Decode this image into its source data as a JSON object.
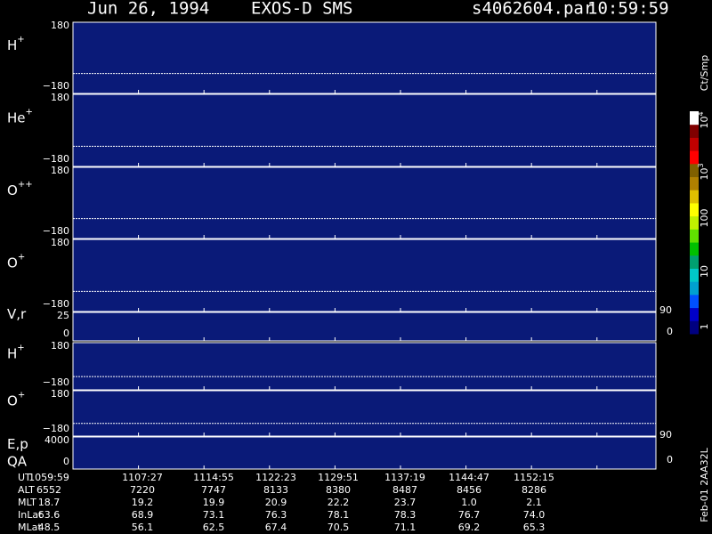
{
  "header": {
    "date": "Jun 26, 1994",
    "instrument": "EXOS-D SMS",
    "file": "s4062604.par",
    "time": "10:59:59"
  },
  "panels": [
    {
      "label": "H",
      "sup": "+",
      "ticks": [
        "180",
        "−180"
      ]
    },
    {
      "label": "He",
      "sup": "+",
      "ticks": [
        "180",
        "−180"
      ]
    },
    {
      "label": "O",
      "sup": "++",
      "ticks": [
        "180",
        "−180"
      ]
    },
    {
      "label": "O",
      "sup": "+",
      "ticks": [
        "180",
        "−180"
      ]
    },
    {
      "label": "V,r",
      "ticks": [
        "25",
        "0"
      ],
      "right_ticks": [
        "90",
        "0"
      ]
    },
    {
      "label": "H",
      "sup": "+",
      "ticks": [
        "180",
        "−180"
      ]
    },
    {
      "label": "O",
      "sup": "+",
      "ticks": [
        "180",
        "−180"
      ]
    },
    {
      "label": "E,p",
      "label2": "QA",
      "ticks": [
        "4000",
        "0"
      ],
      "right_ticks": [
        "90",
        "0"
      ]
    }
  ],
  "colorbar": {
    "title": "Ct/Smp",
    "ticks": [
      {
        "base": "10",
        "sup": "4"
      },
      {
        "base": "10",
        "sup": "3"
      },
      {
        "base": "100"
      },
      {
        "base": "10"
      },
      {
        "base": "1"
      }
    ]
  },
  "table": {
    "rows": [
      [
        "UT",
        "1059:59",
        "1107:27",
        "1114:55",
        "1122:23",
        "1129:51",
        "1137:19",
        "1144:47",
        "1152:15"
      ],
      [
        "ALT",
        "6552",
        "7220",
        "7747",
        "8133",
        "8380",
        "8487",
        "8456",
        "8286"
      ],
      [
        "MLT",
        "18.7",
        "19.2",
        "19.9",
        "20.9",
        "22.2",
        "23.7",
        "1.0",
        "2.1"
      ],
      [
        "InLat",
        "63.6",
        "68.9",
        "73.1",
        "76.3",
        "78.1",
        "78.3",
        "76.7",
        "74.0"
      ],
      [
        "MLat",
        "48.5",
        "56.1",
        "62.5",
        "67.4",
        "70.5",
        "71.1",
        "69.2",
        "65.3"
      ]
    ]
  },
  "footer": "Feb-01 2AA32L"
}
